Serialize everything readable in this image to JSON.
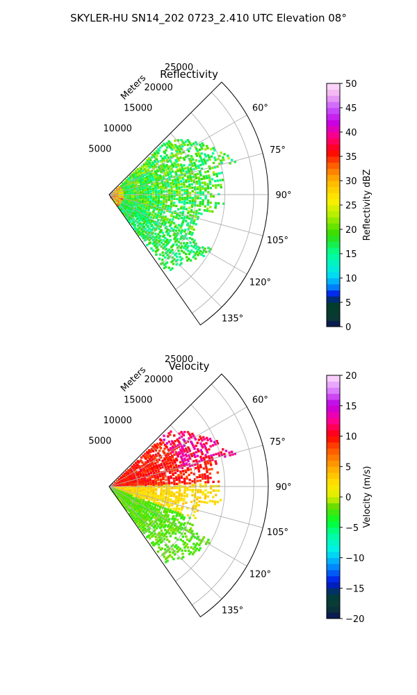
{
  "suptitle": "SKYLER-HU  SN14_202  0723_2.410 UTC Elevation 08°",
  "chart_data": [
    {
      "type": "polar_sector_ppi",
      "title": "Reflectivity",
      "range_label": "Meters",
      "radial_ticks": [
        "5000",
        "10000",
        "15000",
        "20000",
        "25000"
      ],
      "radial_tick_values": [
        5000,
        10000,
        15000,
        20000,
        25000
      ],
      "rlim": [
        0,
        27500
      ],
      "angle_ticks": [
        "60°",
        "75°",
        "90°",
        "105°",
        "120°",
        "135°"
      ],
      "angle_tick_values": [
        60,
        75,
        90,
        105,
        120,
        135
      ],
      "azimuth_range": [
        45,
        145
      ],
      "grid": true,
      "colorbar": {
        "label": "Reflectivity dBZ",
        "range": [
          0,
          50
        ],
        "ticks": [
          "0",
          "5",
          "10",
          "15",
          "20",
          "25",
          "30",
          "35",
          "40",
          "45",
          "50"
        ],
        "tick_values": [
          0,
          5,
          10,
          15,
          20,
          25,
          30,
          35,
          40,
          45,
          50
        ]
      },
      "field_summary": {
        "typical_value_range": [
          10,
          25
        ],
        "near_radar_max": 38
      }
    },
    {
      "type": "polar_sector_ppi",
      "title": "Velocity",
      "range_label": "Meters",
      "radial_ticks": [
        "5000",
        "10000",
        "15000",
        "20000",
        "25000"
      ],
      "radial_tick_values": [
        5000,
        10000,
        15000,
        20000,
        25000
      ],
      "rlim": [
        0,
        27500
      ],
      "angle_ticks": [
        "60°",
        "75°",
        "90°",
        "105°",
        "120°",
        "135°"
      ],
      "angle_tick_values": [
        60,
        75,
        90,
        105,
        120,
        135
      ],
      "azimuth_range": [
        45,
        145
      ],
      "grid": true,
      "colorbar": {
        "label": "Velocity (m/s)",
        "range": [
          -20,
          20
        ],
        "ticks": [
          "−20",
          "−15",
          "−10",
          "−5",
          "0",
          "5",
          "10",
          "15",
          "20"
        ],
        "tick_values": [
          -20,
          -15,
          -10,
          -5,
          0,
          5,
          10,
          15,
          20
        ]
      },
      "field_summary": {
        "north_sector_value": 10,
        "center_sector_value": 2,
        "south_sector_value": -3,
        "max_value": 15
      }
    }
  ]
}
